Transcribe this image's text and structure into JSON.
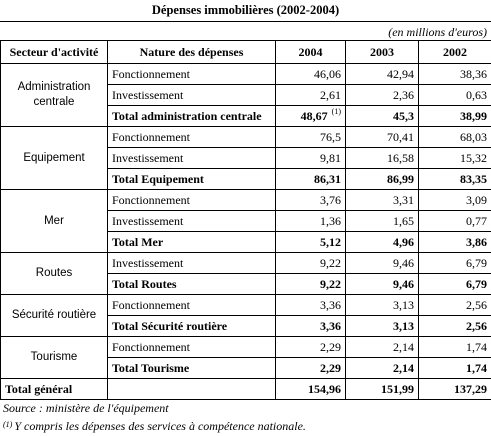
{
  "header": {
    "title": "Dépenses immobilières (2002-2004)",
    "unit": "(en millions d'euros)"
  },
  "table": {
    "columns": [
      "Secteur d'activité",
      "Nature des dépenses",
      "2004",
      "2003",
      "2002"
    ],
    "groups": [
      {
        "sector": "Administration centrale",
        "rows": [
          {
            "nature": "Fonctionnement",
            "values": [
              "46,06",
              "42,94",
              "38,36"
            ]
          },
          {
            "nature": "Investissement",
            "values": [
              "2,61",
              "2,36",
              "0,63"
            ]
          },
          {
            "nature": "Total administration centrale",
            "values": [
              "48,67",
              "45,3",
              "38,99"
            ],
            "note": "(1)",
            "total": true
          }
        ]
      },
      {
        "sector": "Equipement",
        "rows": [
          {
            "nature": "Fonctionnement",
            "values": [
              "76,5",
              "70,41",
              "68,03"
            ]
          },
          {
            "nature": "Investissement",
            "values": [
              "9,81",
              "16,58",
              "15,32"
            ]
          },
          {
            "nature": "Total Equipement",
            "values": [
              "86,31",
              "86,99",
              "83,35"
            ],
            "total": true
          }
        ]
      },
      {
        "sector": "Mer",
        "rows": [
          {
            "nature": "Fonctionnement",
            "values": [
              "3,76",
              "3,31",
              "3,09"
            ]
          },
          {
            "nature": "Investissement",
            "values": [
              "1,36",
              "1,65",
              "0,77"
            ]
          },
          {
            "nature": "Total Mer",
            "values": [
              "5,12",
              "4,96",
              "3,86"
            ],
            "total": true
          }
        ]
      },
      {
        "sector": "Routes",
        "rows": [
          {
            "nature": "Investissement",
            "values": [
              "9,22",
              "9,46",
              "6,79"
            ]
          },
          {
            "nature": "Total Routes",
            "values": [
              "9,22",
              "9,46",
              "6,79"
            ],
            "total": true
          }
        ]
      },
      {
        "sector": "Sécurité routière",
        "rows": [
          {
            "nature": "Fonctionnement",
            "values": [
              "3,36",
              "3,13",
              "2,56"
            ]
          },
          {
            "nature": "Total Sécurité routière",
            "values": [
              "3,36",
              "3,13",
              "2,56"
            ],
            "total": true
          }
        ]
      },
      {
        "sector": "Tourisme",
        "rows": [
          {
            "nature": "Fonctionnement",
            "values": [
              "2,29",
              "2,14",
              "1,74"
            ]
          },
          {
            "nature": "Total Tourisme",
            "values": [
              "2,29",
              "2,14",
              "1,74"
            ],
            "total": true
          }
        ]
      }
    ],
    "grand_total": {
      "label": "Total général",
      "values": [
        "154,96",
        "151,99",
        "137,29"
      ]
    }
  },
  "footer": {
    "source": "Source : ministère de l'équipement",
    "note_mark": "(1)",
    "note": "Y compris les dépenses des services à compétence nationale."
  }
}
